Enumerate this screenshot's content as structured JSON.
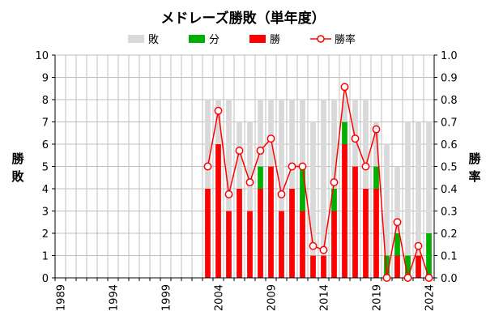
{
  "chart_data": {
    "type": "bar",
    "title": "メドレーズ勝敗（単年度）",
    "ylabel": "勝敗",
    "y2label": "勝率",
    "ylim": [
      0,
      10
    ],
    "y2lim": [
      0,
      1
    ],
    "yticks": [
      "0",
      "1",
      "2",
      "3",
      "4",
      "5",
      "6",
      "7",
      "8",
      "9",
      "10"
    ],
    "y2ticks": [
      "0.0",
      "0.1",
      "0.2",
      "0.3",
      "0.4",
      "0.5",
      "0.6",
      "0.7",
      "0.8",
      "0.9",
      "1.0"
    ],
    "xlim": [
      1989,
      2024
    ],
    "xticks": [
      "1989",
      "1994",
      "1999",
      "2004",
      "2009",
      "2014",
      "2019",
      "2024"
    ],
    "legend_position": "top",
    "legend": [
      "敗",
      "分",
      "勝",
      "勝率"
    ],
    "colors": {
      "loss": "#d9d9d9",
      "draw": "#00b000",
      "win": "#ff0000",
      "rate_line": "#ff0000",
      "rate_marker_fill": "#ffffff",
      "grid": "#bfbfbf"
    },
    "categories": [
      "2003",
      "2004",
      "2005",
      "2006",
      "2007",
      "2008",
      "2009",
      "2010",
      "2011",
      "2012",
      "2013",
      "2014",
      "2015",
      "2016",
      "2017",
      "2018",
      "2019",
      "2020",
      "2021",
      "2022",
      "2023",
      "2024"
    ],
    "series": [
      {
        "name": "勝",
        "stack": "wdl",
        "values": [
          4,
          6,
          3,
          4,
          3,
          4,
          5,
          3,
          4,
          3,
          1,
          1,
          3,
          6,
          5,
          4,
          4,
          0,
          1,
          0,
          1,
          0
        ]
      },
      {
        "name": "分",
        "stack": "wdl",
        "values": [
          0,
          0,
          0,
          0,
          0,
          1,
          0,
          0,
          0,
          2,
          0,
          0,
          1,
          1,
          0,
          0,
          1,
          1,
          1,
          1,
          0,
          2
        ]
      },
      {
        "name": "敗",
        "stack": "wdl",
        "values": [
          4,
          2,
          5,
          3,
          4,
          3,
          3,
          5,
          4,
          3,
          6,
          7,
          4,
          1,
          3,
          4,
          2,
          5,
          3,
          6,
          6,
          5
        ]
      },
      {
        "name": "勝率",
        "type": "line",
        "axis": "right",
        "values": [
          0.5,
          0.75,
          0.375,
          0.571,
          0.429,
          0.571,
          0.625,
          0.375,
          0.5,
          0.5,
          0.143,
          0.125,
          0.429,
          0.857,
          0.625,
          0.5,
          0.667,
          0.0,
          0.25,
          0.0,
          0.143,
          0.0
        ]
      }
    ]
  }
}
